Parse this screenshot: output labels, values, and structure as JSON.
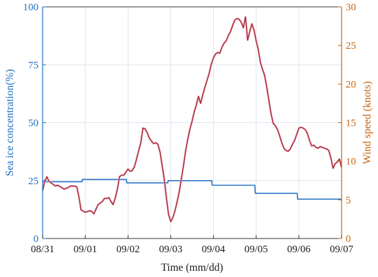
{
  "colors": {
    "left_axis": "#1f6fbf",
    "right_axis": "#c8640e",
    "ice_line": "#2a74c8",
    "wind_line": "#a01d1d",
    "wind_halo": "#f2b8d4",
    "grid": "#dde5ee",
    "x_axis": "#333333"
  },
  "chart_data": {
    "type": "line",
    "x_unit": "day",
    "categories": [
      "08/31",
      "09/01",
      "09/02",
      "09/03",
      "09/04",
      "09/05",
      "09/06",
      "09/07"
    ],
    "xlabel": "Time (mm/dd)",
    "ylabel_left": "Sea ice concentration(%)",
    "ylabel_right": "Wind speed (knots)",
    "ylim_left": [
      0,
      100
    ],
    "ylim_right": [
      0,
      30
    ],
    "yticks_left": [
      "0",
      "25",
      "50",
      "75",
      "100"
    ],
    "yticks_right": [
      "0",
      "5",
      "10",
      "15",
      "20",
      "25",
      "30"
    ],
    "grid": true,
    "series": [
      {
        "axis": "left",
        "x": [
          0,
          0.92,
          0.93,
          1.96,
          1.97,
          2.93,
          2.94,
          3.96,
          3.97,
          4.97,
          4.98,
          5.96,
          5.97,
          7.0
        ],
        "values": [
          24.5,
          24.5,
          25.5,
          25.5,
          24.0,
          24.0,
          25.0,
          25.0,
          23.0,
          23.0,
          19.5,
          19.5,
          17.0,
          17.0
        ]
      },
      {
        "axis": "right",
        "x": [
          0,
          0.05,
          0.1,
          0.15,
          0.2,
          0.3,
          0.35,
          0.45,
          0.5,
          0.6,
          0.65,
          0.75,
          0.8,
          0.85,
          0.9,
          1.0,
          1.05,
          1.1,
          1.15,
          1.2,
          1.25,
          1.3,
          1.4,
          1.45,
          1.5,
          1.55,
          1.6,
          1.65,
          1.7,
          1.75,
          1.8,
          1.85,
          1.9,
          2.0,
          2.05,
          2.1,
          2.15,
          2.2,
          2.25,
          2.3,
          2.35,
          2.4,
          2.45,
          2.5,
          2.55,
          2.6,
          2.65,
          2.7,
          2.75,
          2.8,
          2.85,
          2.9,
          2.95,
          3.0,
          3.05,
          3.1,
          3.15,
          3.2,
          3.25,
          3.3,
          3.35,
          3.4,
          3.45,
          3.5,
          3.55,
          3.6,
          3.65,
          3.7,
          3.75,
          3.8,
          3.85,
          3.9,
          3.95,
          4.0,
          4.05,
          4.1,
          4.15,
          4.2,
          4.25,
          4.3,
          4.35,
          4.4,
          4.45,
          4.5,
          4.55,
          4.6,
          4.65,
          4.7,
          4.75,
          4.8,
          4.85,
          4.9,
          4.95,
          5.0,
          5.05,
          5.1,
          5.15,
          5.2,
          5.25,
          5.3,
          5.35,
          5.4,
          5.45,
          5.5,
          5.55,
          5.6,
          5.65,
          5.7,
          5.75,
          5.8,
          5.85,
          5.9,
          5.95,
          6.0,
          6.05,
          6.1,
          6.15,
          6.2,
          6.25,
          6.3,
          6.35,
          6.4,
          6.45,
          6.5,
          6.55,
          6.6,
          6.65,
          6.7,
          6.75,
          6.8,
          6.85,
          6.9,
          6.95,
          7.0
        ],
        "values": [
          6.2,
          7.4,
          8.0,
          7.4,
          7.2,
          6.8,
          6.9,
          6.6,
          6.4,
          6.6,
          6.8,
          6.8,
          6.7,
          5.4,
          3.7,
          3.4,
          3.5,
          3.6,
          3.5,
          3.2,
          3.8,
          4.4,
          4.8,
          5.2,
          5.2,
          5.3,
          4.8,
          4.4,
          5.2,
          6.4,
          8.0,
          8.2,
          8.2,
          9.0,
          8.7,
          8.8,
          9.3,
          10.3,
          11.4,
          12.4,
          14.3,
          14.2,
          13.7,
          13.0,
          12.6,
          12.3,
          12.4,
          12.2,
          11.2,
          9.4,
          7.6,
          5.2,
          3.1,
          2.2,
          2.7,
          3.6,
          4.8,
          6.1,
          7.8,
          9.5,
          11.4,
          12.9,
          14.2,
          15.2,
          16.4,
          17.3,
          18.4,
          17.5,
          18.6,
          19.6,
          20.5,
          21.4,
          22.6,
          23.4,
          23.9,
          24.1,
          24.0,
          24.8,
          25.3,
          25.6,
          26.3,
          26.8,
          27.6,
          28.3,
          28.5,
          28.4,
          28.0,
          27.3,
          28.7,
          25.7,
          26.8,
          27.8,
          27.0,
          25.6,
          24.5,
          22.8,
          21.9,
          21.1,
          19.5,
          17.8,
          16.1,
          14.9,
          14.6,
          14.1,
          13.3,
          12.4,
          11.7,
          11.4,
          11.3,
          11.6,
          12.2,
          12.7,
          13.5,
          14.3,
          14.4,
          14.3,
          14.1,
          13.6,
          12.7,
          12.0,
          12.1,
          11.8,
          11.7,
          11.9,
          11.8,
          11.7,
          11.6,
          11.4,
          10.4,
          9.1,
          9.7,
          9.9,
          10.3,
          9.2
        ]
      }
    ]
  }
}
